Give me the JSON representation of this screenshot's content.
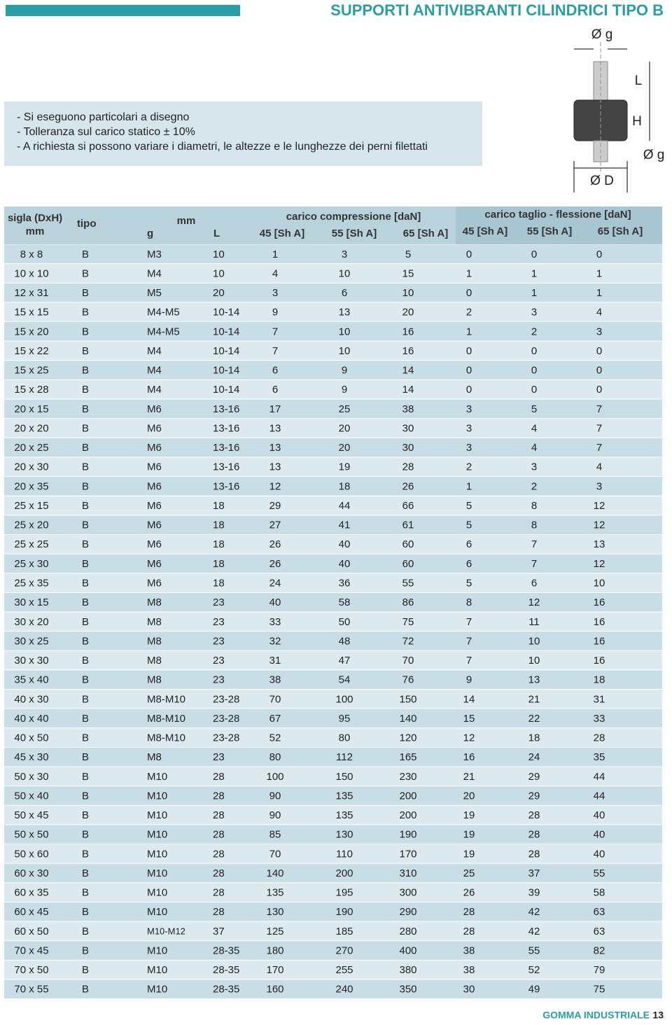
{
  "header": {
    "title": "SUPPORTI ANTIVIBRANTI CILINDRICI TIPO B"
  },
  "notes": [
    "- Si eseguono particolari a disegno",
    "- Tolleranza sul carico statico ± 10%",
    "- A richiesta si possono variare i diametri, le altezze e le lunghezze dei perni filettati"
  ],
  "diagram": {
    "top": "Ø g",
    "l": "L",
    "h": "H",
    "right": "Ø g",
    "bottom": "Ø D"
  },
  "table": {
    "head": {
      "sigla": "sigla (DxH)",
      "sigla_unit": "mm",
      "tipo": "tipo",
      "mm": "mm",
      "g": "g",
      "l": "L",
      "compressione": "carico compressione [daN]",
      "taglio": "carico taglio - flessione [daN]",
      "c45": "45 [Sh A]",
      "c55": "55 [Sh A]",
      "c65": "65 [Sh A]",
      "t45": "45 [Sh A]",
      "t55": "55 [Sh A]",
      "t65": "65 [Sh A]"
    },
    "rows": [
      [
        "8 x 8",
        "B",
        "M3",
        "10",
        "1",
        "3",
        "5",
        "0",
        "0",
        "0"
      ],
      [
        "10 x 10",
        "B",
        "M4",
        "10",
        "4",
        "10",
        "15",
        "1",
        "1",
        "1"
      ],
      [
        "12 x 31",
        "B",
        "M5",
        "20",
        "3",
        "6",
        "10",
        "0",
        "1",
        "1"
      ],
      [
        "15 x 15",
        "B",
        "M4-M5",
        "10-14",
        "9",
        "13",
        "20",
        "2",
        "3",
        "4"
      ],
      [
        "15 x 20",
        "B",
        "M4-M5",
        "10-14",
        "7",
        "10",
        "16",
        "1",
        "2",
        "3"
      ],
      [
        "15 x 22",
        "B",
        "M4",
        "10-14",
        "7",
        "10",
        "16",
        "0",
        "0",
        "0"
      ],
      [
        "15 x 25",
        "B",
        "M4",
        "10-14",
        "6",
        "9",
        "14",
        "0",
        "0",
        "0"
      ],
      [
        "15 x 28",
        "B",
        "M4",
        "10-14",
        "6",
        "9",
        "14",
        "0",
        "0",
        "0"
      ],
      [
        "20 x 15",
        "B",
        "M6",
        "13-16",
        "17",
        "25",
        "38",
        "3",
        "5",
        "7"
      ],
      [
        "20 x 20",
        "B",
        "M6",
        "13-16",
        "13",
        "20",
        "30",
        "3",
        "4",
        "7"
      ],
      [
        "20 x 25",
        "B",
        "M6",
        "13-16",
        "13",
        "20",
        "30",
        "3",
        "4",
        "7"
      ],
      [
        "20 x 30",
        "B",
        "M6",
        "13-16",
        "13",
        "19",
        "28",
        "2",
        "3",
        "4"
      ],
      [
        "20 x 35",
        "B",
        "M6",
        "13-16",
        "12",
        "18",
        "26",
        "1",
        "2",
        "3"
      ],
      [
        "25 x 15",
        "B",
        "M6",
        "18",
        "29",
        "44",
        "66",
        "5",
        "8",
        "12"
      ],
      [
        "25 x 20",
        "B",
        "M6",
        "18",
        "27",
        "41",
        "61",
        "5",
        "8",
        "12"
      ],
      [
        "25 x 25",
        "B",
        "M6",
        "18",
        "26",
        "40",
        "60",
        "6",
        "7",
        "13"
      ],
      [
        "25 x 30",
        "B",
        "M6",
        "18",
        "26",
        "40",
        "60",
        "6",
        "7",
        "12"
      ],
      [
        "25 x 35",
        "B",
        "M6",
        "18",
        "24",
        "36",
        "55",
        "5",
        "6",
        "10"
      ],
      [
        "30 x 15",
        "B",
        "M8",
        "23",
        "40",
        "58",
        "86",
        "8",
        "12",
        "16"
      ],
      [
        "30 x 20",
        "B",
        "M8",
        "23",
        "33",
        "50",
        "75",
        "7",
        "11",
        "16"
      ],
      [
        "30 x 25",
        "B",
        "M8",
        "23",
        "32",
        "48",
        "72",
        "7",
        "10",
        "16"
      ],
      [
        "30 x 30",
        "B",
        "M8",
        "23",
        "31",
        "47",
        "70",
        "7",
        "10",
        "16"
      ],
      [
        "35 x 40",
        "B",
        "M8",
        "23",
        "38",
        "54",
        "76",
        "9",
        "13",
        "18"
      ],
      [
        "40 x 30",
        "B",
        "M8-M10",
        "23-28",
        "70",
        "100",
        "150",
        "14",
        "21",
        "31"
      ],
      [
        "40 x 40",
        "B",
        "M8-M10",
        "23-28",
        "67",
        "95",
        "140",
        "15",
        "22",
        "33"
      ],
      [
        "40 x 50",
        "B",
        "M8-M10",
        "23-28",
        "52",
        "80",
        "120",
        "12",
        "18",
        "28"
      ],
      [
        "45 x 30",
        "B",
        "M8",
        "23",
        "80",
        "112",
        "165",
        "16",
        "24",
        "35"
      ],
      [
        "50 x 30",
        "B",
        "M10",
        "28",
        "100",
        "150",
        "230",
        "21",
        "29",
        "44"
      ],
      [
        "50 x 40",
        "B",
        "M10",
        "28",
        "90",
        "135",
        "200",
        "20",
        "29",
        "44"
      ],
      [
        "50 x 45",
        "B",
        "M10",
        "28",
        "90",
        "135",
        "200",
        "19",
        "28",
        "40"
      ],
      [
        "50 x 50",
        "B",
        "M10",
        "28",
        "85",
        "130",
        "190",
        "19",
        "28",
        "40"
      ],
      [
        "50 x 60",
        "B",
        "M10",
        "28",
        "70",
        "110",
        "170",
        "19",
        "28",
        "40"
      ],
      [
        "60 x 30",
        "B",
        "M10",
        "28",
        "140",
        "200",
        "310",
        "25",
        "37",
        "55"
      ],
      [
        "60 x 35",
        "B",
        "M10",
        "28",
        "135",
        "195",
        "300",
        "26",
        "39",
        "58"
      ],
      [
        "60 x 45",
        "B",
        "M10",
        "28",
        "130",
        "190",
        "290",
        "28",
        "42",
        "63"
      ],
      [
        "60 x 50",
        "B",
        "M10-M12",
        "37",
        "125",
        "185",
        "280",
        "28",
        "42",
        "63"
      ],
      [
        "70 x 45",
        "B",
        "M10",
        "28-35",
        "180",
        "270",
        "400",
        "38",
        "55",
        "82"
      ],
      [
        "70 x 50",
        "B",
        "M10",
        "28-35",
        "170",
        "255",
        "380",
        "38",
        "52",
        "79"
      ],
      [
        "70 x 55",
        "B",
        "M10",
        "28-35",
        "160",
        "240",
        "350",
        "30",
        "49",
        "75"
      ]
    ]
  },
  "footer": {
    "brand": "GOMMA INDUSTRIALE",
    "page": "13"
  }
}
